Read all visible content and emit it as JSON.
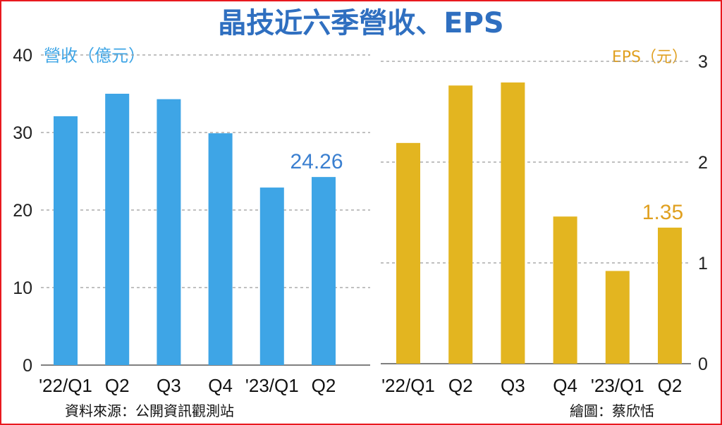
{
  "title": "晶技近六季營收、EPS",
  "source": "資料來源：公開資訊觀測站",
  "credit": "繪圖：蔡欣恬",
  "colors": {
    "revenue": "#3ea5e6",
    "eps": "#e3b520",
    "title": "#2f6fc0",
    "frame": "#e8191f"
  },
  "chart_data": [
    {
      "type": "bar",
      "unit_label": "營收（億元）",
      "categories": [
        "'22/Q1",
        "Q2",
        "Q3",
        "Q4",
        "'23/Q1",
        "Q2"
      ],
      "values": [
        32.1,
        35.0,
        34.3,
        29.9,
        22.9,
        24.26
      ],
      "data_labels": [
        "",
        "",
        "",
        "",
        "",
        "24.26"
      ],
      "ylim": [
        0,
        40
      ],
      "yticks": [
        0,
        10,
        20,
        30,
        40
      ],
      "tick_labels": [
        "0",
        "10",
        "20",
        "30",
        "40"
      ],
      "axis_side": "left",
      "grid": true
    },
    {
      "type": "bar",
      "unit_label": "EPS（元）",
      "categories": [
        "'22/Q1",
        "Q2",
        "Q3",
        "Q4",
        "'23/Q1",
        "Q2"
      ],
      "values": [
        2.19,
        2.76,
        2.79,
        1.46,
        0.92,
        1.35
      ],
      "data_labels": [
        "",
        "",
        "",
        "",
        "",
        "1.35"
      ],
      "ylim": [
        0,
        3
      ],
      "yticks": [
        0,
        1,
        2,
        3
      ],
      "tick_labels": [
        "0",
        "1",
        "2",
        "3"
      ],
      "axis_side": "right",
      "grid": true
    }
  ]
}
